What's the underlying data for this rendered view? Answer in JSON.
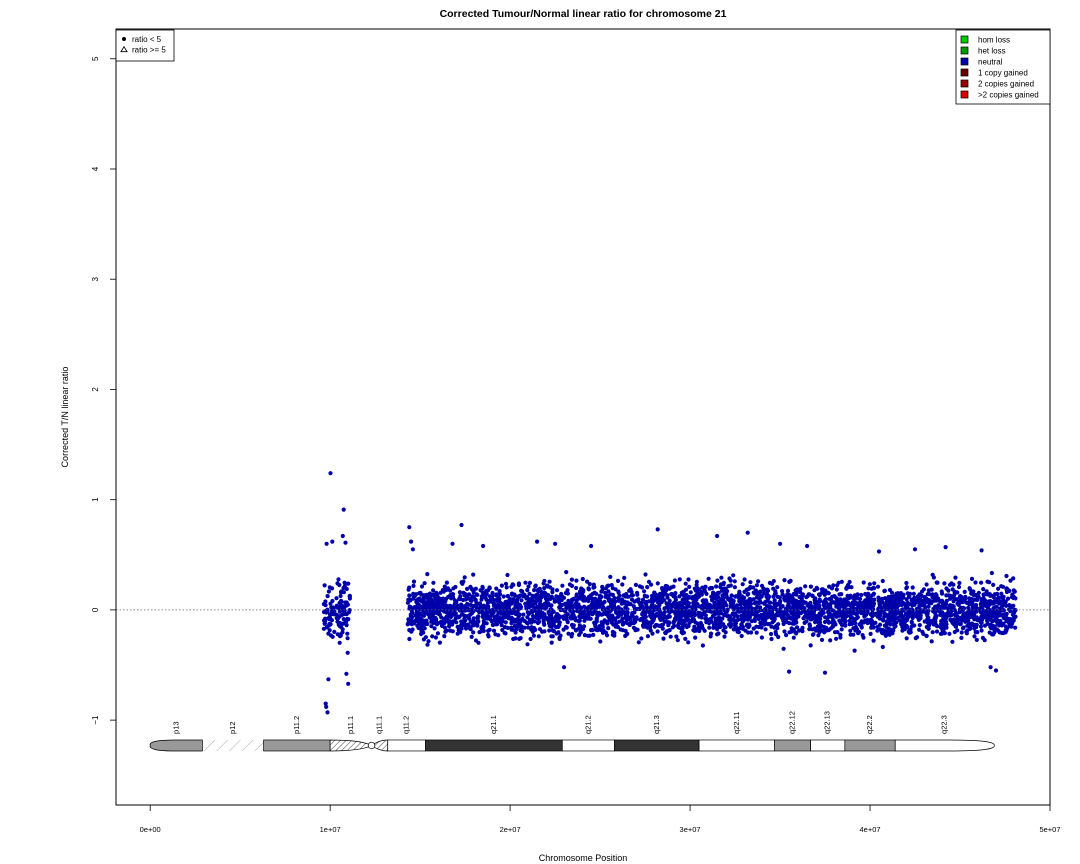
{
  "chart_data": {
    "type": "scatter",
    "title": "Corrected Tumour/Normal linear ratio for chromosome  21",
    "xlabel": "Chromosome Position",
    "ylabel": "Corrected T/N linear ratio",
    "xlim": [
      -1900000,
      50000000
    ],
    "ylim": [
      -1.77,
      5.27
    ],
    "x_ticks": [
      {
        "value": 0,
        "label": "0e+00"
      },
      {
        "value": 10000000,
        "label": "1e+07"
      },
      {
        "value": 20000000,
        "label": "2e+07"
      },
      {
        "value": 30000000,
        "label": "3e+07"
      },
      {
        "value": 40000000,
        "label": "4e+07"
      },
      {
        "value": 50000000,
        "label": "5e+07"
      }
    ],
    "y_ticks": [
      {
        "value": -1,
        "label": "−1"
      },
      {
        "value": 0,
        "label": "0"
      },
      {
        "value": 1,
        "label": "1"
      },
      {
        "value": 2,
        "label": "2"
      },
      {
        "value": 3,
        "label": "3"
      },
      {
        "value": 4,
        "label": "4"
      },
      {
        "value": 5,
        "label": "5"
      }
    ],
    "reference_line": {
      "y": 0,
      "style": "dotted"
    },
    "point_color": "#0000aa",
    "point_clusters": [
      {
        "x_start": 9650000,
        "x_end": 10250000,
        "y_low": -0.48,
        "y_high": 0.42,
        "density": 0.0008
      },
      {
        "x_start": 10350000,
        "x_end": 11100000,
        "y_low": -0.55,
        "y_high": 0.55,
        "density": 0.0009
      },
      {
        "x_start": 14300000,
        "x_end": 14750000,
        "y_low": -0.45,
        "y_high": 0.45,
        "density": 0.0009
      },
      {
        "x_start": 14750000,
        "x_end": 48100000,
        "y_low": -0.42,
        "y_high": 0.42,
        "density": 0.0011
      }
    ],
    "outliers": [
      {
        "x": 9800000,
        "y": 0.6
      },
      {
        "x": 10120000,
        "y": 0.62
      },
      {
        "x": 9750000,
        "y": -0.85
      },
      {
        "x": 9850000,
        "y": -0.93
      },
      {
        "x": 9780000,
        "y": -0.88
      },
      {
        "x": 9900000,
        "y": -0.63
      },
      {
        "x": 10020000,
        "y": 1.24
      },
      {
        "x": 10750000,
        "y": 0.91
      },
      {
        "x": 10700000,
        "y": 0.67
      },
      {
        "x": 10850000,
        "y": 0.61
      },
      {
        "x": 11000000,
        "y": -0.67
      },
      {
        "x": 10900000,
        "y": -0.58
      },
      {
        "x": 14400000,
        "y": 0.75
      },
      {
        "x": 14500000,
        "y": 0.62
      },
      {
        "x": 14600000,
        "y": 0.55
      },
      {
        "x": 17300000,
        "y": 0.77
      },
      {
        "x": 16800000,
        "y": 0.6
      },
      {
        "x": 18500000,
        "y": 0.58
      },
      {
        "x": 21500000,
        "y": 0.62
      },
      {
        "x": 22500000,
        "y": 0.6
      },
      {
        "x": 24500000,
        "y": 0.58
      },
      {
        "x": 28200000,
        "y": 0.73
      },
      {
        "x": 31500000,
        "y": 0.67
      },
      {
        "x": 33200000,
        "y": 0.7
      },
      {
        "x": 35000000,
        "y": 0.6
      },
      {
        "x": 36500000,
        "y": 0.58
      },
      {
        "x": 40500000,
        "y": 0.53
      },
      {
        "x": 42500000,
        "y": 0.55
      },
      {
        "x": 44200000,
        "y": 0.57
      },
      {
        "x": 46200000,
        "y": 0.54
      },
      {
        "x": 23000000,
        "y": -0.52
      },
      {
        "x": 35500000,
        "y": -0.56
      },
      {
        "x": 37500000,
        "y": -0.57
      },
      {
        "x": 47000000,
        "y": -0.55
      },
      {
        "x": 46700000,
        "y": -0.52
      }
    ],
    "ideogram": {
      "y_center": -1.23,
      "bands": [
        {
          "name": "p13",
          "start": 0,
          "end": 2900000,
          "stain": "gvar"
        },
        {
          "name": "p12",
          "start": 2900000,
          "end": 6300000,
          "stain": "stalk"
        },
        {
          "name": "p11.2",
          "start": 6300000,
          "end": 10000000,
          "stain": "gpos50"
        },
        {
          "name": "p11.1",
          "start": 10000000,
          "end": 12300000,
          "stain": "acen"
        },
        {
          "name": "q11.1",
          "start": 12300000,
          "end": 13200000,
          "stain": "acen"
        },
        {
          "name": "q11.2",
          "start": 13200000,
          "end": 15300000,
          "stain": "gneg"
        },
        {
          "name": "q21.1",
          "start": 15300000,
          "end": 22900000,
          "stain": "gpos100"
        },
        {
          "name": "q21.2",
          "start": 22900000,
          "end": 25800000,
          "stain": "gneg"
        },
        {
          "name": "q21.3",
          "start": 25800000,
          "end": 30500000,
          "stain": "gpos75"
        },
        {
          "name": "q22.11",
          "start": 30500000,
          "end": 34700000,
          "stain": "gneg"
        },
        {
          "name": "q22.12",
          "start": 34700000,
          "end": 36700000,
          "stain": "gpos50"
        },
        {
          "name": "q22.13",
          "start": 36700000,
          "end": 38600000,
          "stain": "gneg"
        },
        {
          "name": "q22.2",
          "start": 38600000,
          "end": 41400000,
          "stain": "gpos50"
        },
        {
          "name": "q22.3",
          "start": 41400000,
          "end": 46900000,
          "stain": "gneg"
        }
      ]
    },
    "legend_ratio": {
      "position": "top-left",
      "entries": [
        {
          "label": "ratio < 5",
          "symbol": "dot"
        },
        {
          "label": "ratio >= 5",
          "symbol": "triangle"
        }
      ]
    },
    "legend_copy": {
      "position": "top-right",
      "entries": [
        {
          "label": "hom loss",
          "color": "#00cc00"
        },
        {
          "label": "het loss",
          "color": "#009900"
        },
        {
          "label": "neutral",
          "color": "#0000aa"
        },
        {
          "label": "1 copy gained",
          "color": "#660000"
        },
        {
          "label": "2 copies gained",
          "color": "#990000"
        },
        {
          "label": ">2 copies gained",
          "color": "#dd0000"
        }
      ]
    }
  }
}
